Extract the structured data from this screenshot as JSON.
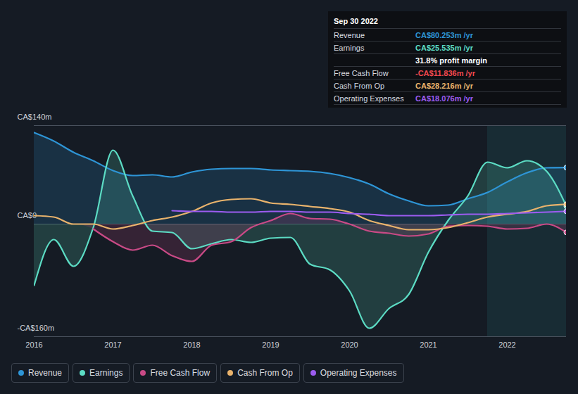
{
  "chart_data": {
    "type": "line",
    "x": [
      2016,
      2016.25,
      2016.5,
      2016.75,
      2017,
      2017.25,
      2017.5,
      2017.75,
      2018,
      2018.25,
      2018.5,
      2018.75,
      2019,
      2019.25,
      2019.5,
      2019.75,
      2020,
      2020.25,
      2020.5,
      2020.75,
      2021,
      2021.25,
      2021.5,
      2021.75,
      2022,
      2022.25,
      2022.5,
      2022.75
    ],
    "xlim": [
      2016,
      2022.75
    ],
    "xticks": [
      2016,
      2017,
      2018,
      2019,
      2020,
      2021,
      2022
    ],
    "ylim": [
      -160,
      140
    ],
    "yticks": [
      {
        "value": 140,
        "label": "CA$140m"
      },
      {
        "value": 0,
        "label": "CA$0"
      },
      {
        "value": -160,
        "label": "-CA$160m"
      }
    ],
    "grid": true,
    "shaded_range": [
      2021.75,
      2022.75
    ],
    "series": [
      {
        "name": "Revenue",
        "color": "#2e95d6",
        "type": "area",
        "values": [
          130,
          118,
          102,
          90,
          76,
          69,
          70,
          67,
          74,
          78,
          79,
          79,
          77,
          76,
          75,
          72,
          66,
          57,
          43,
          33,
          26,
          27,
          36,
          45,
          60,
          73,
          80,
          80.3
        ]
      },
      {
        "name": "Earnings",
        "color": "#5cdcc4",
        "type": "area",
        "values": [
          -87,
          -22,
          -60,
          -5,
          105,
          40,
          -10,
          -12,
          -35,
          -28,
          -22,
          -26,
          -20,
          -19,
          -57,
          -65,
          -95,
          -148,
          -120,
          -100,
          -40,
          5,
          40,
          88,
          80,
          90,
          75,
          25.5
        ]
      },
      {
        "name": "Free Cash Flow",
        "color": "#c94a86",
        "type": "area",
        "values": [
          null,
          null,
          null,
          -7,
          -25,
          -37,
          -30,
          -45,
          -53,
          -30,
          -25,
          -5,
          5,
          15,
          8,
          7,
          0,
          -10,
          -13,
          -17,
          -14,
          -3,
          -2,
          -3,
          -7,
          -6,
          0,
          -11.8
        ]
      },
      {
        "name": "Cash From Op",
        "color": "#e9b36c",
        "type": "line",
        "values": [
          12,
          10,
          0,
          0,
          -7,
          -2,
          5,
          10,
          18,
          30,
          35,
          36,
          30,
          28,
          25,
          22,
          17,
          5,
          -2,
          -8,
          -8,
          -5,
          2,
          10,
          14,
          18,
          26,
          28.2
        ]
      },
      {
        "name": "Operating Expenses",
        "color": "#9c5cf0",
        "type": "line",
        "values": [
          null,
          null,
          null,
          null,
          null,
          null,
          null,
          19,
          18,
          18,
          17,
          17,
          18,
          18,
          17,
          17,
          15,
          14,
          12,
          12,
          12,
          13,
          14,
          14,
          15,
          16,
          17,
          18.1
        ]
      }
    ],
    "tooltip": {
      "title": "Sep 30 2022",
      "rows": [
        {
          "label": "Revenue",
          "value": "CA$80.253m /yr",
          "color": "#2e95d6"
        },
        {
          "label": "Earnings",
          "value": "CA$25.535m /yr",
          "color": "#5cdcc4"
        },
        {
          "value": "31.8% profit margin",
          "color": "#ffffff"
        },
        {
          "label": "Free Cash Flow",
          "value": "-CA$11.836m /yr",
          "color": "#f0484f"
        },
        {
          "label": "Cash From Op",
          "value": "CA$28.216m /yr",
          "color": "#e9b36c"
        },
        {
          "label": "Operating Expenses",
          "value": "CA$18.076m /yr",
          "color": "#9c5cf0"
        }
      ]
    }
  }
}
